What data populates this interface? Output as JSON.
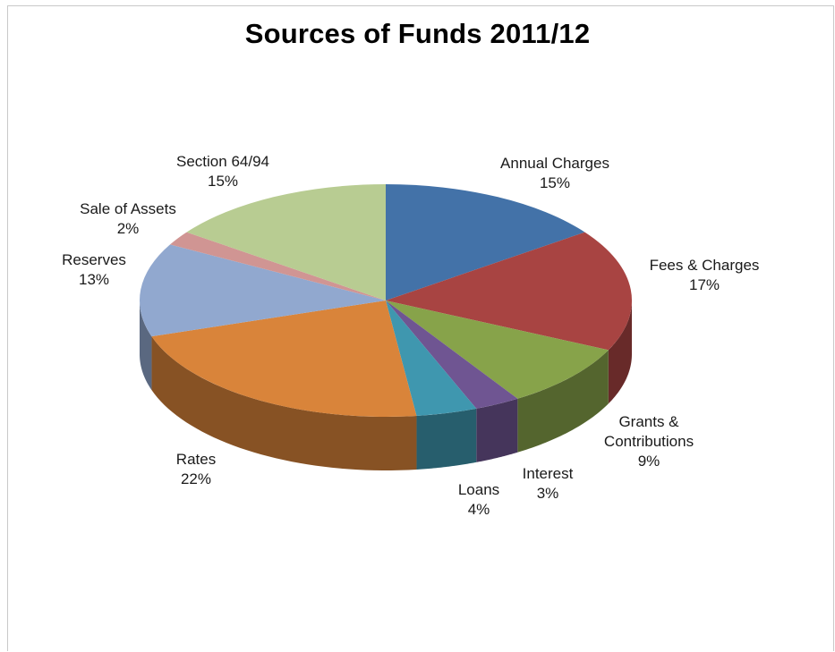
{
  "chart_data": {
    "type": "pie",
    "title": "Sources of Funds 2011/12",
    "three_d": true,
    "slices": [
      {
        "name": "Annual Charges",
        "value": 15,
        "label": "15%",
        "color": "#4372A8"
      },
      {
        "name": "Fees & Charges",
        "value": 17,
        "label": "17%",
        "color": "#A84442"
      },
      {
        "name": "Grants & Contributions",
        "value": 9,
        "label": "9%",
        "color": "#87A34A"
      },
      {
        "name": "Interest",
        "value": 3,
        "label": "3%",
        "color": "#6F5592"
      },
      {
        "name": "Loans",
        "value": 4,
        "label": "4%",
        "color": "#3F97AF"
      },
      {
        "name": "Rates",
        "value": 22,
        "label": "22%",
        "color": "#D9843A"
      },
      {
        "name": "Reserves",
        "value": 13,
        "label": "13%",
        "color": "#91A8CF"
      },
      {
        "name": "Sale of Assets",
        "value": 2,
        "label": "2%",
        "color": "#D09593"
      },
      {
        "name": "Section 64/94",
        "value": 15,
        "label": "15%",
        "color": "#B8CC92"
      }
    ]
  },
  "labels": {
    "annual_name": "Annual Charges",
    "fees_name": "Fees & Charges",
    "grants_name_1": "Grants &",
    "grants_name_2": "Contributions",
    "interest_name": "Interest",
    "loans_name": "Loans",
    "rates_name": "Rates",
    "reserves_name": "Reserves",
    "sale_name": "Sale of Assets",
    "section_name": "Section 64/94"
  }
}
